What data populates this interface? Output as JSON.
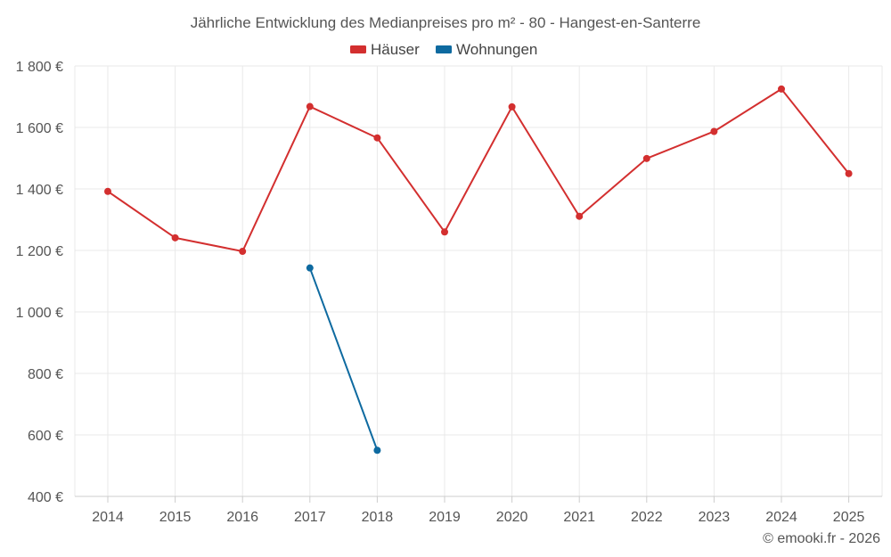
{
  "chart_data": {
    "type": "line",
    "title": "Jährliche Entwicklung des Medianpreises pro m² - 80 - Hangest-en-Santerre",
    "categories": [
      "2014",
      "2015",
      "2016",
      "2017",
      "2018",
      "2019",
      "2020",
      "2021",
      "2022",
      "2023",
      "2024",
      "2025"
    ],
    "series": [
      {
        "name": "Häuser",
        "color": "#d32f2f",
        "values": [
          1392,
          1241,
          1197,
          1668,
          1566,
          1260,
          1667,
          1311,
          1499,
          1587,
          1725,
          1450
        ]
      },
      {
        "name": "Wohnungen",
        "color": "#0e6aa0",
        "values": [
          null,
          null,
          null,
          1143,
          550,
          null,
          null,
          null,
          null,
          null,
          null,
          null
        ]
      }
    ],
    "ylim": [
      400,
      1800
    ],
    "yticks": [
      400,
      600,
      800,
      1000,
      1200,
      1400,
      1600,
      1800
    ],
    "ytick_labels": [
      "400 €",
      "600 €",
      "800 €",
      "1 000 €",
      "1 200 €",
      "1 400 €",
      "1 600 €",
      "1 800 €"
    ],
    "xlabel": "",
    "ylabel": "",
    "grid": true,
    "legend_position": "top-center"
  },
  "credit": "© emooki.fr - 2026"
}
